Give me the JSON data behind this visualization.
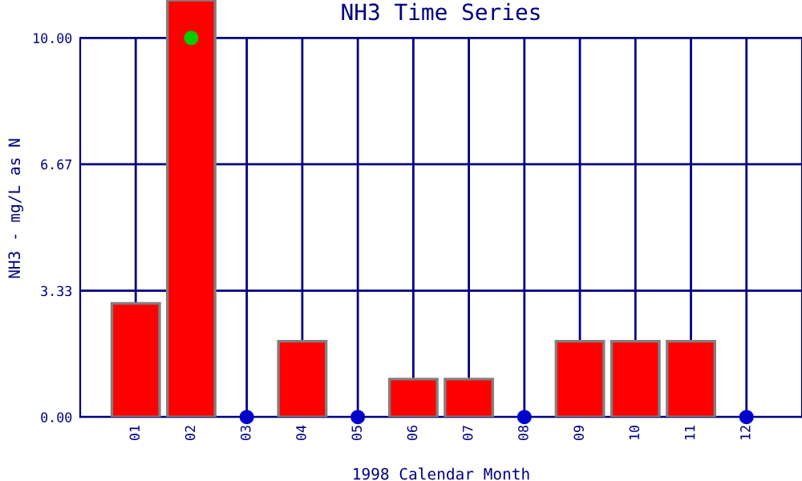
{
  "chart_data": {
    "type": "bar",
    "title": "NH3 Time Series",
    "xlabel": "1998 Calendar Month",
    "ylabel": "NH3 - mg/L as N",
    "categories": [
      "01",
      "02",
      "03",
      "04",
      "05",
      "06",
      "07",
      "08",
      "09",
      "10",
      "11",
      "12"
    ],
    "series": [
      {
        "color": "#ff0000",
        "values": [
          3.0,
          11.0,
          null,
          2.0,
          null,
          1.0,
          1.0,
          null,
          2.0,
          2.0,
          2.0,
          null
        ]
      },
      {
        "type": "scatter",
        "color": "#0000cc",
        "x": [
          "03",
          "05",
          "08",
          "12"
        ],
        "values": [
          0,
          0,
          0,
          0
        ]
      },
      {
        "type": "scatter",
        "color": "#00cc00",
        "x": [
          "02"
        ],
        "values": [
          10
        ]
      }
    ],
    "ylim": [
      0,
      11
    ],
    "yticks": [
      {
        "value": 0,
        "label": "0.00"
      },
      3.33,
      6.67,
      {
        "value": 10,
        "label": "10.00"
      }
    ],
    "grid": true,
    "marker": "circle"
  }
}
